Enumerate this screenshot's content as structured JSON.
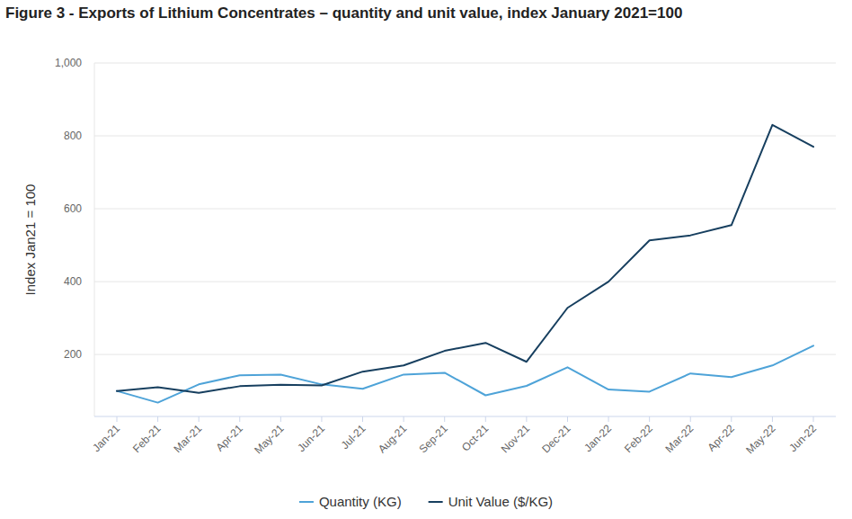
{
  "chart_data": {
    "type": "line",
    "title": "Figure 3 - Exports of Lithium Concentrates – quantity and unit value, index January 2021=100",
    "y_label": "Index Jan21 = 100",
    "categories": [
      "Jan-21",
      "Feb-21",
      "Mar-21",
      "Apr-21",
      "May-21",
      "Jun-21",
      "Jul-21",
      "Aug-21",
      "Sep-21",
      "Oct-21",
      "Nov-21",
      "Dec-21",
      "Jan-22",
      "Feb-22",
      "Mar-22",
      "Apr-22",
      "May-22",
      "Jun-22"
    ],
    "series": [
      {
        "name": "Quantity (KG)",
        "color": "#4ea3d8",
        "values": [
          100,
          68,
          118,
          143,
          145,
          118,
          106,
          145,
          150,
          88,
          114,
          165,
          104,
          98,
          148,
          138,
          170,
          224
        ]
      },
      {
        "name": "Unit Value ($/KG)",
        "color": "#173f5f",
        "values": [
          100,
          110,
          95,
          113,
          117,
          115,
          153,
          170,
          210,
          232,
          180,
          328,
          400,
          513,
          527,
          555,
          830,
          770
        ]
      }
    ],
    "ylim": [
      30,
      1000
    ],
    "yticks": [
      200,
      400,
      600,
      800,
      {
        "value": 1000,
        "label": "1,000"
      }
    ],
    "grid": true,
    "legend": "bottom"
  }
}
